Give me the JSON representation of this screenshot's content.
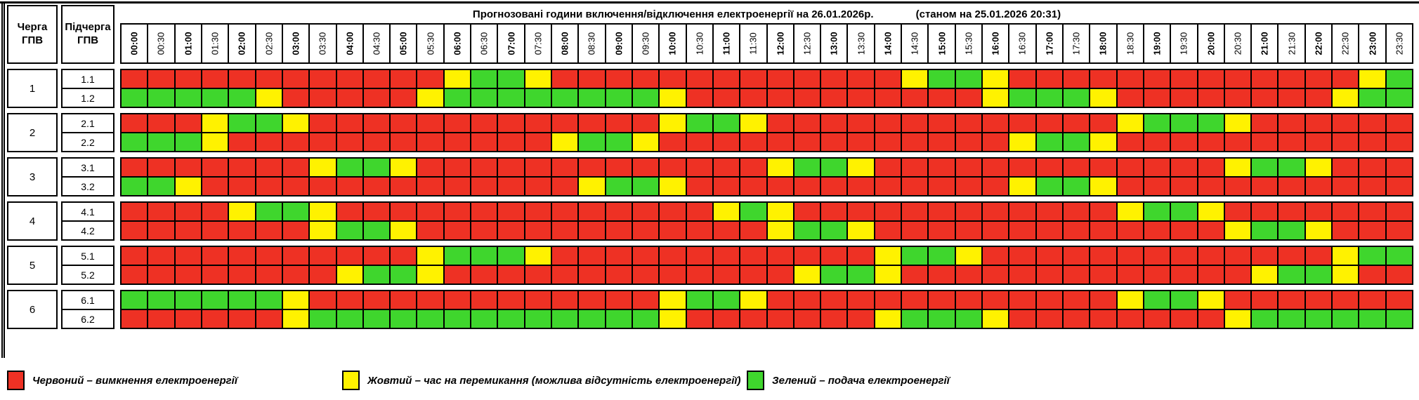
{
  "title": "Прогнозовані години включення/відключення електроенергії на 26.01.2026р.",
  "as_of": "(станом на 25.01.2026 20:31)",
  "headers": {
    "queue": "Черга ГПВ",
    "subqueue": "Підчерга ГПВ"
  },
  "times": [
    "00:00",
    "00:30",
    "01:00",
    "01:30",
    "02:00",
    "02:30",
    "03:00",
    "03:30",
    "04:00",
    "04:30",
    "05:00",
    "05:30",
    "06:00",
    "06:30",
    "07:00",
    "07:30",
    "08:00",
    "08:30",
    "09:00",
    "09:30",
    "10:00",
    "10:30",
    "11:00",
    "11:30",
    "12:00",
    "12:30",
    "13:00",
    "13:30",
    "14:00",
    "14:30",
    "15:00",
    "15:30",
    "16:00",
    "16:30",
    "17:00",
    "17:30",
    "18:00",
    "18:30",
    "19:00",
    "19:30",
    "20:00",
    "20:30",
    "21:00",
    "21:30",
    "22:00",
    "22:30",
    "23:00",
    "23:30"
  ],
  "colors": {
    "R": "#ee3124",
    "Y": "#fff200",
    "G": "#3fd62d"
  },
  "groups": [
    {
      "queue": "1",
      "rows": [
        {
          "label": "1.1",
          "cells": "RRRRRRRRRRRRYGGYRRRRRRRRRRRRRYGGYRRRRRRRRRRRRRYG"
        },
        {
          "label": "1.2",
          "cells": "GGGGGYRRRRRYGGGGGGGGYRRRRRRRRRRRYGGGYRRRRRRRRYGG"
        }
      ]
    },
    {
      "queue": "2",
      "rows": [
        {
          "label": "2.1",
          "cells": "RRRYGGYRRRRRRRRRRRRRYGGYRRRRRRRRRRRRRYGGGYRRRRRR"
        },
        {
          "label": "2.2",
          "cells": "GGGYRRRRRRRRRRRRYGGYRRRRRRRRRRRRRYGGYRRRRRRRRRRR"
        }
      ]
    },
    {
      "queue": "3",
      "rows": [
        {
          "label": "3.1",
          "cells": "RRRRRRRYGGYRRRRRRRRRRRRRYGGYRRRRRRRRRRRRRYGGYRRR"
        },
        {
          "label": "3.2",
          "cells": "GGYRRRRRRRRRRRRRRYGGYRRRRRRRRRRRRYGGYRRRRRRRRRRR"
        }
      ]
    },
    {
      "queue": "4",
      "rows": [
        {
          "label": "4.1",
          "cells": "RRRRYGGYRRRRRRRRRRRRRRYGYRRRRRRRRRRRRYGGYRRRRRRR"
        },
        {
          "label": "4.2",
          "cells": "RRRRRRRYGGYRRRRRRRRRRRRRYGGYRRRRRRRRRRRRRYGGYRRR"
        }
      ]
    },
    {
      "queue": "5",
      "rows": [
        {
          "label": "5.1",
          "cells": "RRRRRRRRRRRYGGGYRRRRRRRRRRRRYGGYRRRRRRRRRRRRRYGG"
        },
        {
          "label": "5.2",
          "cells": "RRRRRRRRYGGYRRRRRRRRRRRRRYGGYRRRRRRRRRRRRRYGGYRR"
        }
      ]
    },
    {
      "queue": "6",
      "rows": [
        {
          "label": "6.1",
          "cells": "GGGGGGYRRRRRRRRRRRRRYGGYRRRRRRRRRRRRRYGGYRRRRRRR"
        },
        {
          "label": "6.2",
          "cells": "RRRRRRYGGGGGGGGGGGGGYRRRRRRRYGGGYRRRRRRRRYGGGGGG"
        }
      ]
    }
  ],
  "legend": [
    {
      "color": "R",
      "label": "Червоний – вимкнення електроенергії"
    },
    {
      "color": "Y",
      "label": "Жовтий – час на перемикання (можлива відсутність електроенергії)"
    },
    {
      "color": "G",
      "label": "Зелений – подача електроенергії"
    }
  ]
}
